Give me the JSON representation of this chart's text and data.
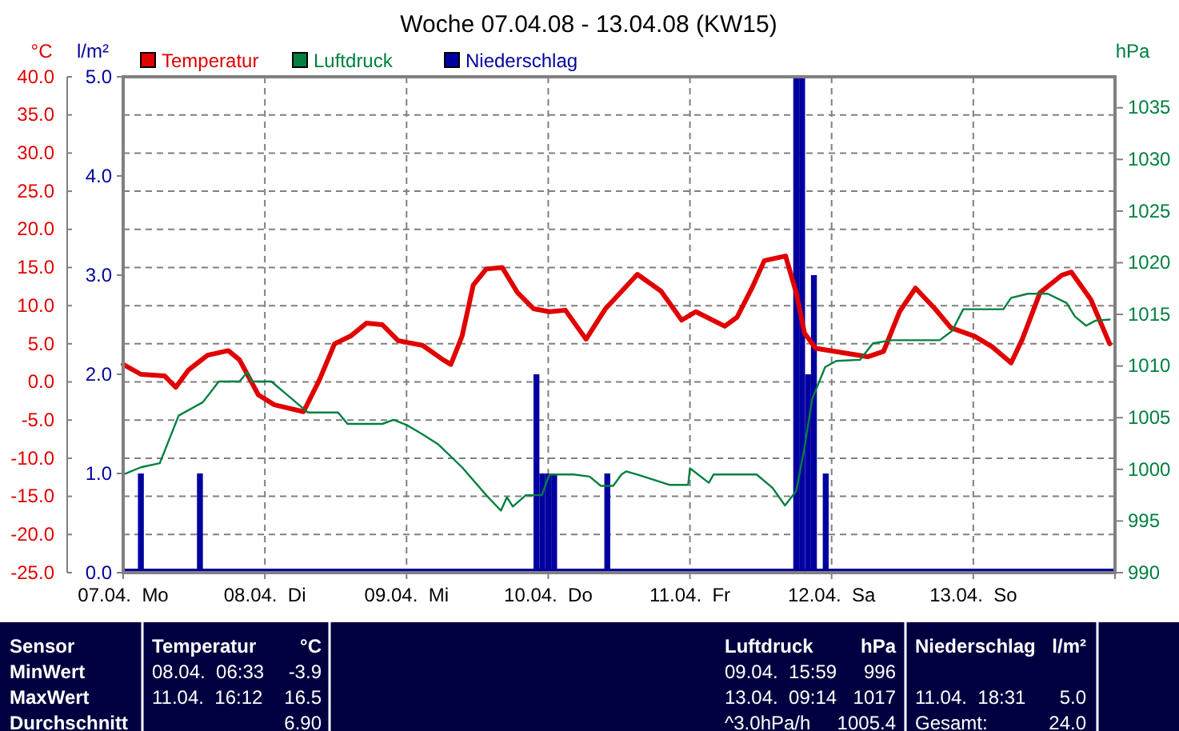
{
  "chart_data": [
    {
      "type": "line",
      "title": "Woche 07.04.08 - 13.04.08 (KW15)",
      "ylabel": "°C",
      "y2label": "l/m²",
      "y3label": "hPa",
      "xlim": [
        "--04-07T00:00",
        "--04-14T00:00"
      ],
      "xticks": [
        {
          "value": "--04-07T00:00",
          "label": "07.04.  Mo"
        },
        {
          "value": "--04-08T00:00",
          "label": "08.04.  Di"
        },
        {
          "value": "--04-09T00:00",
          "label": "09.04.  Mi"
        },
        {
          "value": "--04-10T00:00",
          "label": "10.04.  Do"
        },
        {
          "value": "--04-11T00:00",
          "label": "11.04.  Fr"
        },
        {
          "value": "--04-12T00:00",
          "label": "12.04.  Sa"
        },
        {
          "value": "--04-13T00:00",
          "label": "13.04.  So"
        }
      ],
      "ylim": [
        -25,
        40
      ],
      "yticks": [
        {
          "value": -25,
          "label": "-25.0"
        },
        {
          "value": -20,
          "label": "-20.0"
        },
        {
          "value": -15,
          "label": "-15.0"
        },
        {
          "value": -10,
          "label": "-10.0"
        },
        {
          "value": -5,
          "label": "-5.0"
        },
        {
          "value": 0,
          "label": "0.0"
        },
        {
          "value": 5,
          "label": "5.0"
        },
        {
          "value": 10,
          "label": "10.0"
        },
        {
          "value": 15,
          "label": "15.0"
        },
        {
          "value": 20,
          "label": "20.0"
        },
        {
          "value": 25,
          "label": "25.0"
        },
        {
          "value": 30,
          "label": "30.0"
        },
        {
          "value": 35,
          "label": "35.0"
        },
        {
          "value": 40,
          "label": "40.0"
        }
      ],
      "y2lim": [
        0,
        5
      ],
      "y2ticks": [
        {
          "value": 0,
          "label": "0.0"
        },
        {
          "value": 1,
          "label": "1.0"
        },
        {
          "value": 2,
          "label": "2.0"
        },
        {
          "value": 3,
          "label": "3.0"
        },
        {
          "value": 4,
          "label": "4.0"
        },
        {
          "value": 5,
          "label": "5.0"
        }
      ],
      "y3lim": [
        990,
        1038
      ],
      "y3ticks": [
        990,
        995,
        1000,
        1005,
        1010,
        1015,
        1020,
        1025,
        1030,
        1035
      ],
      "grid": true,
      "legend": "top left",
      "marker": "none",
      "series": [
        {
          "name": "Temperatur",
          "color": "#e00000",
          "x": [
            "--04-07T00:00",
            "--04-07T03:00",
            "--04-07T07:00",
            "--04-07T08:54",
            "--04-07T11:06",
            "--04-07T14:18",
            "--04-07T17:48",
            "--04-07T19:42",
            "--04-07T22:54",
            "--04-08T01:36",
            "--04-08T06:33",
            "--04-08T09:12",
            "--04-08T11:48",
            "--04-08T14:30",
            "--04-08T17:12",
            "--04-08T19:54",
            "--04-08T22:36",
            "--04-09T02:42",
            "--04-09T06:12",
            "--04-09T07:30",
            "--04-09T09:24",
            "--04-09T11:18",
            "--04-09T13:30",
            "--04-09T16:12",
            "--04-09T18:48",
            "--04-09T21:30",
            "--04-10T00:12",
            "--04-10T02:54",
            "--04-10T06:24",
            "--04-10T09:42",
            "--04-10T15:06",
            "--04-10T19:06",
            "--04-10T22:36",
            "--04-11T01:00",
            "--04-11T05:54",
            "--04-11T08:00",
            "--04-11T10:30",
            "--04-11T12:36",
            "--04-11T16:12",
            "--04-11T18:00",
            "--04-11T19:24",
            "--04-11T21:18",
            "--04-12T02:06",
            "--04-12T06:06",
            "--04-12T08:48",
            "--04-12T11:30",
            "--04-12T14:12",
            "--04-12T17:30",
            "--04-12T20:12",
            "--04-13T00:12",
            "--04-13T03:12",
            "--04-13T06:24",
            "--04-13T08:18",
            "--04-13T11:18",
            "--04-13T15:00",
            "--04-13T16:36",
            "--04-13T19:54",
            "--04-13T23:06"
          ],
          "values": [
            2.3,
            1,
            0.8,
            -0.7,
            1.6,
            3.5,
            4.1,
            2.9,
            -1.7,
            -3,
            -3.9,
            0.2,
            5,
            6,
            7.7,
            7.5,
            5.4,
            4.8,
            2.9,
            2.3,
            6,
            12.7,
            14.8,
            15,
            11.7,
            9.6,
            9.2,
            9.4,
            5.6,
            9.6,
            14.1,
            11.9,
            8.1,
            9.2,
            7.3,
            8.5,
            12.3,
            15.9,
            16.5,
            11.7,
            6.4,
            4.4,
            3.8,
            3.3,
            4,
            9.2,
            12.3,
            9.6,
            7.1,
            6,
            4.6,
            2.5,
            5.6,
            11.7,
            14,
            14.4,
            10.8,
            5
          ]
        },
        {
          "name": "Luftdruck",
          "color": "#008040",
          "axis": "y3",
          "x": [
            "--04-07T00:00",
            "--04-07T03:00",
            "--04-07T06:12",
            "--04-07T09:24",
            "--04-07T13:30",
            "--04-07T16:12",
            "--04-07T19:42",
            "--04-07T21:00",
            "--04-07T21:48",
            "--04-08T01:06",
            "--04-08T03:48",
            "--04-08T07:18",
            "--04-08T12:24",
            "--04-08T14:00",
            "--04-08T19:54",
            "--04-08T21:48",
            "--04-09T00:00",
            "--04-09T02:42",
            "--04-09T05:24",
            "--04-09T09:24",
            "--04-09T13:30",
            "--04-09T15:59",
            "--04-09T17:00",
            "--04-09T18:00",
            "--04-09T20:12",
            "--04-09T22:54",
            "--04-10T00:12",
            "--04-10T04:18",
            "--04-10T07:00",
            "--04-10T08:54",
            "--04-10T11:00",
            "--04-10T12:24",
            "--04-10T13:12",
            "--04-10T15:06",
            "--04-10T20:30",
            "--04-10T23:42",
            "--04-11T00:00",
            "--04-11T03:12",
            "--04-11T04:00",
            "--04-11T11:18",
            "--04-11T14:00",
            "--04-11T16:06",
            "--04-11T18:00",
            "--04-11T19:24",
            "--04-11T20:42",
            "--04-11T22:54",
            "--04-12T00:48",
            "--04-12T04:48",
            "--04-12T07:00",
            "--04-12T10:12",
            "--04-12T18:18",
            "--04-12T20:24",
            "--04-12T22:18",
            "--04-13T05:06",
            "--04-13T06:24",
            "--04-13T09:14",
            "--04-13T12:36",
            "--04-13T15:48",
            "--04-13T17:12",
            "--04-13T19:06",
            "--04-13T20:42",
            "--04-13T23:06"
          ],
          "values": [
            999.5,
            1000.2,
            1000.6,
            1005.2,
            1006.5,
            1008.5,
            1008.5,
            1009.4,
            1008.5,
            1008.5,
            1007.2,
            1005.5,
            1005.5,
            1004.4,
            1004.4,
            1004.8,
            1004.3,
            1003.4,
            1002.4,
            1000.2,
            997.5,
            996,
            997.3,
            996.4,
            997.5,
            997.5,
            999.5,
            999.5,
            999.3,
            998.4,
            998.4,
            999.5,
            999.8,
            999.5,
            998.5,
            998.5,
            1000.1,
            998.7,
            999.5,
            999.5,
            998.2,
            996.5,
            997.9,
            1002.1,
            1006.8,
            1009.9,
            1010.5,
            1010.6,
            1012.2,
            1012.5,
            1012.5,
            1013.4,
            1015.5,
            1015.5,
            1016.6,
            1017,
            1017,
            1016.1,
            1014.8,
            1013.9,
            1014.4,
            1014.5
          ]
        },
        {
          "name": "Niederschlag",
          "type": "bar",
          "color": "#0000a0",
          "axis": "y2",
          "x": [
            "--04-07T03:00",
            "--04-07T13:00",
            "--04-09T22:00",
            "--04-09T23:00",
            "--04-10T00:00",
            "--04-10T01:00",
            "--04-10T10:00",
            "--04-11T18:00",
            "--04-11T19:00",
            "--04-11T20:00",
            "--04-11T21:00",
            "--04-11T23:00"
          ],
          "values": [
            1,
            1,
            2,
            1,
            1,
            1,
            1,
            5,
            5,
            2,
            3,
            1
          ]
        }
      ]
    },
    {
      "type": "other",
      "annotations": [
        "Sensor",
        "Temperatur",
        "°C",
        "Luftdruck",
        "hPa",
        "Niederschlag",
        "l/m²",
        "MinWert",
        "08.04.  06:33",
        "-3.9",
        "09.04.  15:59",
        "996",
        "MaxWert",
        "11.04.  16:12",
        "16.5",
        "13.04.  09:14",
        "1017",
        "11.04.  18:31",
        "5.0",
        "Durchschnitt",
        "6.90",
        "^3.0hPa/h",
        "1005.4",
        "Gesamt:",
        "24.0"
      ]
    }
  ]
}
